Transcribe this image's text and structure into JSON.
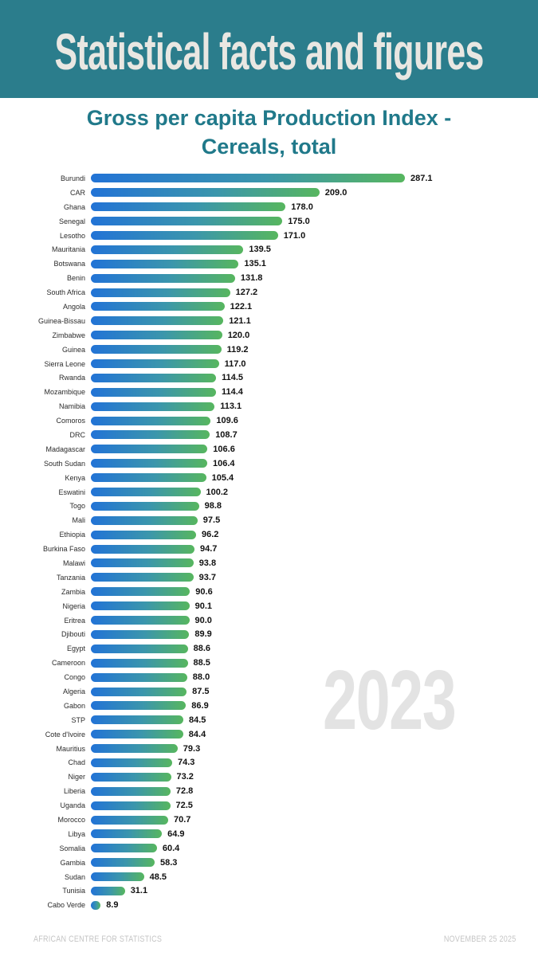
{
  "header": {
    "title": "Statistical facts and figures"
  },
  "chart_title": {
    "line1": "Gross per capita Production Index -",
    "line2": "Cereals, total"
  },
  "watermark": "2023",
  "footer": {
    "left": "AFRICAN CENTRE FOR STATISTICS",
    "right": "NOVEMBER 25 2025"
  },
  "colors": {
    "header_bg": "#2B7D8C",
    "header_text": "#E9E7E2",
    "title_text": "#20798A",
    "bar_gradient_start": "#2273D6",
    "bar_gradient_mid": "#3B96AC",
    "bar_gradient_end": "#57B65F",
    "watermark": "#E3E3E3",
    "footer_text": "#C5C5C5"
  },
  "chart_data": {
    "type": "bar",
    "orientation": "horizontal",
    "title": "Gross per capita Production Index - Cereals, total",
    "year": "2023",
    "xlim": [
      0,
      300
    ],
    "grid": false,
    "legend": "none",
    "value_labels": "end-of-bar, one decimal",
    "categories": [
      "Burundi",
      "CAR",
      "Ghana",
      "Senegal",
      "Lesotho",
      "Mauritania",
      "Botswana",
      "Benin",
      "South Africa",
      "Angola",
      "Guinea-Bissau",
      "Zimbabwe",
      "Guinea",
      "Sierra Leone",
      "Rwanda",
      "Mozambique",
      "Namibia",
      "Comoros",
      "DRC",
      "Madagascar",
      "South Sudan",
      "Kenya",
      "Eswatini",
      "Togo",
      "Mali",
      "Ethiopia",
      "Burkina Faso",
      "Malawi",
      "Tanzania",
      "Zambia",
      "Nigeria",
      "Eritrea",
      "Djibouti",
      "Egypt",
      "Cameroon",
      "Congo",
      "Algeria",
      "Gabon",
      "STP",
      "Cote d'Ivoire",
      "Mauritius",
      "Chad",
      "Niger",
      "Liberia",
      "Uganda",
      "Morocco",
      "Libya",
      "Somalia",
      "Gambia",
      "Sudan",
      "Tunisia",
      "Cabo Verde"
    ],
    "values": [
      287.1,
      209.0,
      178.0,
      175.0,
      171.0,
      139.5,
      135.1,
      131.8,
      127.2,
      122.1,
      121.1,
      120.0,
      119.2,
      117.0,
      114.5,
      114.4,
      113.1,
      109.6,
      108.7,
      106.6,
      106.4,
      105.4,
      100.2,
      98.8,
      97.5,
      96.2,
      94.7,
      93.8,
      93.7,
      90.6,
      90.1,
      90.0,
      89.9,
      88.6,
      88.5,
      88.0,
      87.5,
      86.9,
      84.5,
      84.4,
      79.3,
      74.3,
      73.2,
      72.8,
      72.5,
      70.7,
      64.9,
      60.4,
      58.3,
      48.5,
      31.1,
      8.9
    ]
  }
}
